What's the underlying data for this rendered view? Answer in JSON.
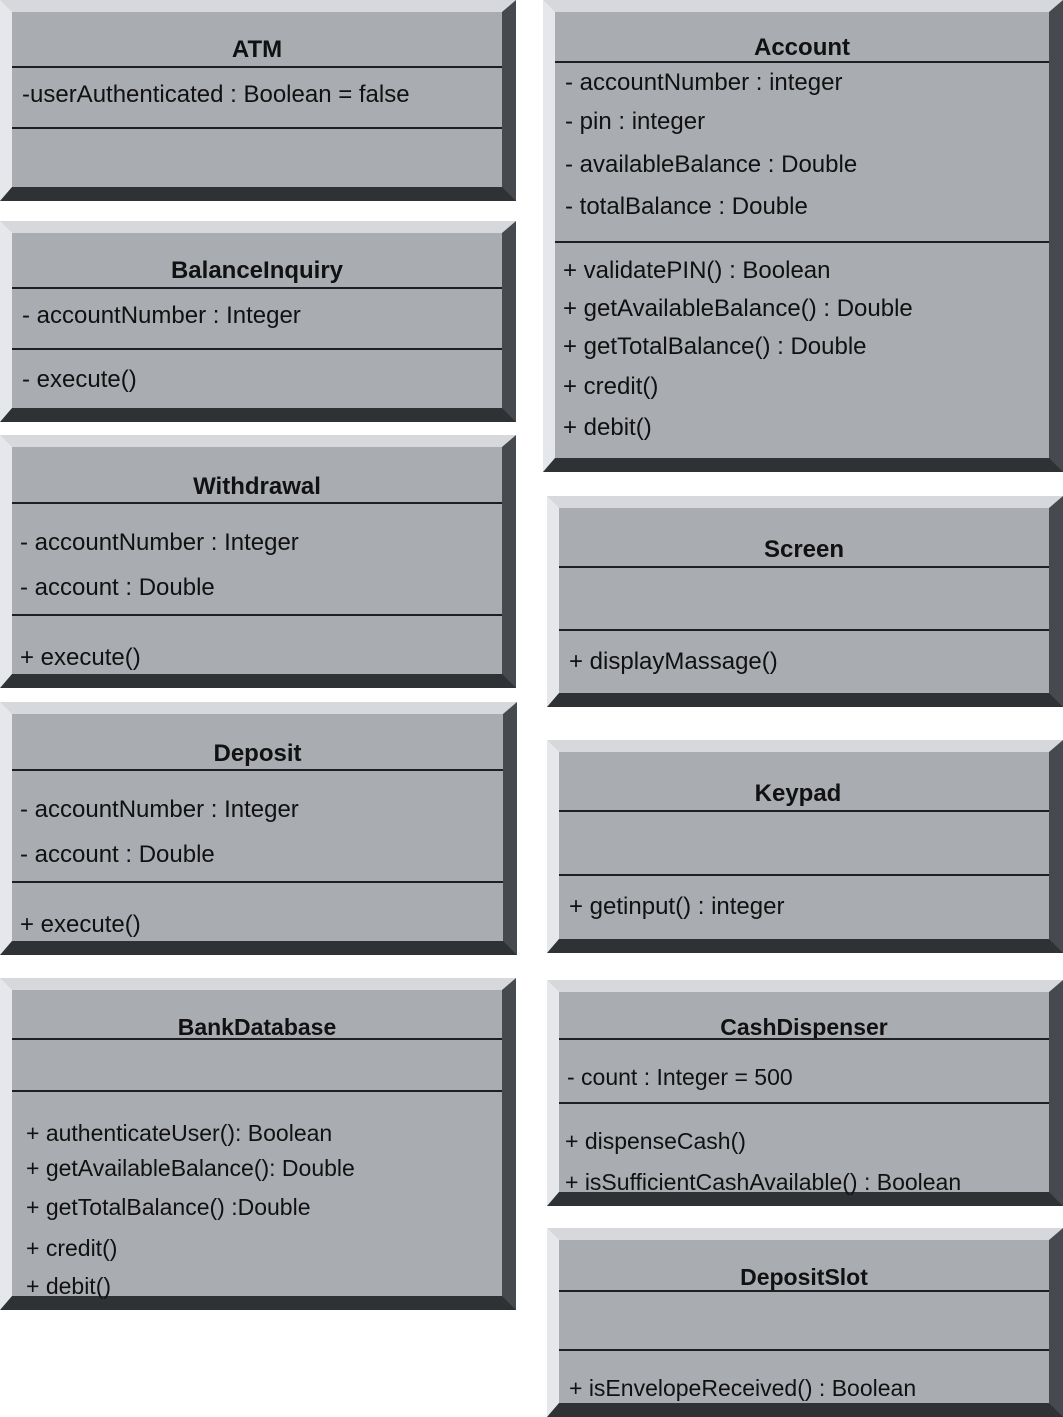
{
  "classes": {
    "atm": {
      "name": "ATM",
      "attributes": [
        "-userAuthenticated : Boolean = false"
      ],
      "operations": []
    },
    "balance_inquiry": {
      "name": "BalanceInquiry",
      "attributes": [
        "- accountNumber : Integer"
      ],
      "operations": [
        "- execute()"
      ]
    },
    "withdrawal": {
      "name": "Withdrawal",
      "attributes": [
        "- accountNumber : Integer",
        "- account : Double"
      ],
      "operations": [
        "+ execute()"
      ]
    },
    "deposit": {
      "name": "Deposit",
      "attributes": [
        "- accountNumber : Integer",
        "- account : Double"
      ],
      "operations": [
        "+ execute()"
      ]
    },
    "bank_database": {
      "name": "BankDatabase",
      "attributes": [],
      "operations": [
        "+ authenticateUser(): Boolean",
        "+ getAvailableBalance(): Double",
        "+ getTotalBalance() :Double",
        "+ credit()",
        "+ debit()"
      ]
    },
    "account": {
      "name": "Account",
      "attributes": [
        "- accountNumber : integer",
        "- pin : integer",
        "- availableBalance : Double",
        "- totalBalance : Double"
      ],
      "operations": [
        "+ validatePIN() : Boolean",
        "+ getAvailableBalance() : Double",
        "+ getTotalBalance() : Double",
        "+ credit()",
        "+ debit()"
      ]
    },
    "screen": {
      "name": "Screen",
      "attributes": [],
      "operations": [
        "+ displayMassage()"
      ]
    },
    "keypad": {
      "name": "Keypad",
      "attributes": [],
      "operations": [
        "+  getinput() : integer"
      ]
    },
    "cash_dispenser": {
      "name": "CashDispenser",
      "attributes": [
        "-  count : Integer = 500"
      ],
      "operations": [
        "+ dispenseCash()",
        "+ isSufficientCashAvailable() : Boolean"
      ]
    },
    "deposit_slot": {
      "name": "DepositSlot",
      "attributes": [],
      "operations": [
        "+ isEnvelopeReceived() : Boolean"
      ]
    }
  }
}
